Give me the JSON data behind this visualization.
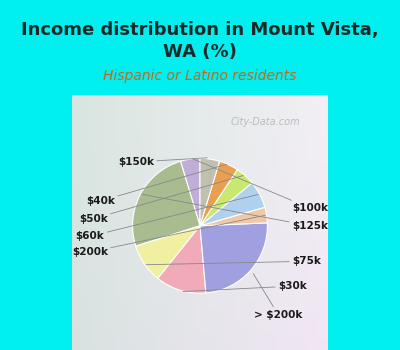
{
  "title": "Income distribution in Mount Vista,\nWA (%)",
  "subtitle": "Hispanic or Latino residents",
  "bg_cyan": "#00EFEF",
  "bg_chart_color": "#d4ece4",
  "labels": [
    "$100k",
    "$125k",
    "$75k",
    "$30k",
    "> $200k",
    "$200k",
    "$60k",
    "$50k",
    "$40k",
    "$150k"
  ],
  "values": [
    5,
    27,
    10,
    13,
    26,
    4,
    7,
    5,
    5,
    5
  ],
  "colors": [
    "#c0aed8",
    "#a8bc90",
    "#f0f0a0",
    "#f0aab8",
    "#a0a0e0",
    "#f0c8a8",
    "#b0d0f0",
    "#c8e870",
    "#e8a050",
    "#c0c0b0"
  ],
  "title_fontsize": 13,
  "subtitle_fontsize": 10,
  "title_color": "#1a2a2a",
  "subtitle_color": "#c06820",
  "watermark": "City-Data.com",
  "startangle": 90,
  "label_fontsize": 7.5
}
